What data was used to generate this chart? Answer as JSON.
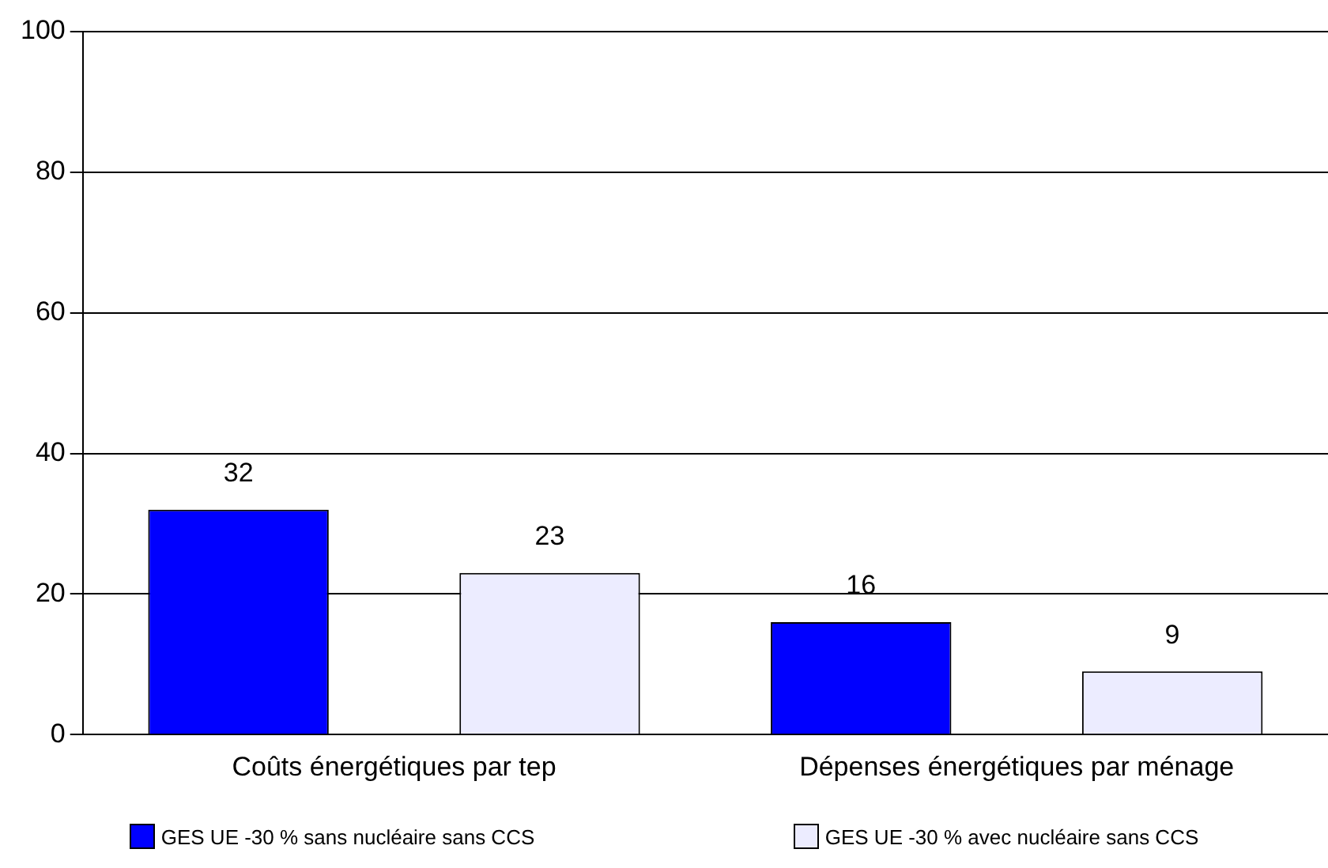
{
  "chart_data": {
    "type": "bar",
    "categories": [
      "Coûts énergétiques par tep",
      "Dépenses énergétiques par ménage"
    ],
    "series": [
      {
        "name": "GES UE -30 % sans nucléaire sans CCS",
        "color": "#0000ff",
        "values": [
          32,
          16
        ]
      },
      {
        "name": "GES UE -30 % avec nucléaire sans CCS",
        "color": "#ececff",
        "values": [
          23,
          9
        ]
      }
    ],
    "ylim": [
      0,
      100
    ],
    "yticks": [
      0,
      20,
      40,
      60,
      80,
      100
    ],
    "grid": "y",
    "legend": "bottom",
    "data_labels": true
  }
}
